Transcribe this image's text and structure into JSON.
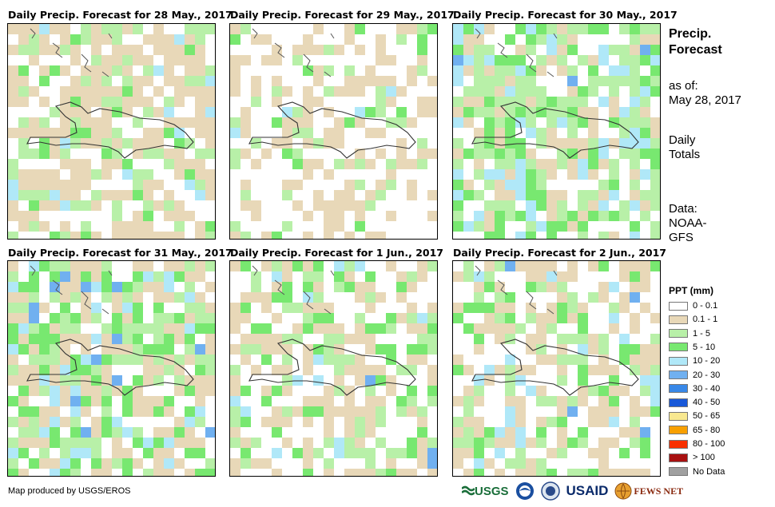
{
  "panels": [
    {
      "title": "Daily Precip. Forecast for 28 May., 2017"
    },
    {
      "title": "Daily Precip. Forecast for 29 May., 2017"
    },
    {
      "title": "Daily Precip. Forecast for 30 May., 2017"
    },
    {
      "title": "Daily Precip. Forecast for 31 May., 2017"
    },
    {
      "title": "Daily Precip. Forecast for 1 Jun., 2017"
    },
    {
      "title": "Daily Precip. Forecast for 2 Jun., 2017"
    }
  ],
  "side": {
    "title_line1": "Precip.",
    "title_line2": "Forecast",
    "asof_label": "as of:",
    "asof_date": "May 28, 2017",
    "totals_line1": "Daily",
    "totals_line2": "Totals",
    "data_line1": "Data:",
    "data_line2": "NOAA-",
    "data_line3": "GFS"
  },
  "legend": {
    "title": "PPT (mm)",
    "items": [
      {
        "label": "0 - 0.1",
        "color": "#ffffff"
      },
      {
        "label": "0.1 - 1",
        "color": "#e8d8b8"
      },
      {
        "label": "1 - 5",
        "color": "#b8f0a8"
      },
      {
        "label": "5 - 10",
        "color": "#78e870"
      },
      {
        "label": "10 - 20",
        "color": "#b0e8f8"
      },
      {
        "label": "20 - 30",
        "color": "#70b0f0"
      },
      {
        "label": "30 - 40",
        "color": "#3888e8"
      },
      {
        "label": "40 - 50",
        "color": "#1858d8"
      },
      {
        "label": "50 - 65",
        "color": "#f8e890"
      },
      {
        "label": "65 - 80",
        "color": "#f8a000"
      },
      {
        "label": "80 - 100",
        "color": "#f83000"
      },
      {
        "label": "> 100",
        "color": "#a81010"
      },
      {
        "label": "No Data",
        "color": "#a0a0a0"
      }
    ]
  },
  "credit": "Map produced by USGS/EROS",
  "logos": {
    "usgs": "USGS",
    "usaid": "USAID",
    "fewsnet": "FEWS NET"
  }
}
